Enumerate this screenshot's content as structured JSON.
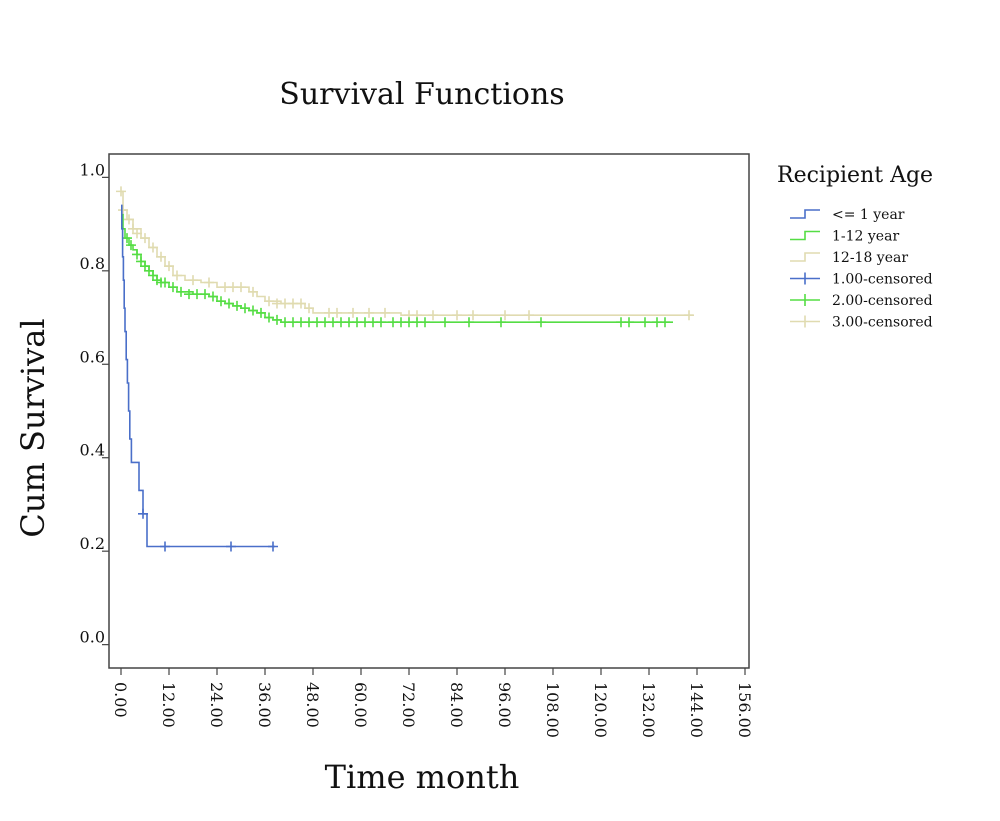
{
  "chart_data": {
    "type": "line",
    "subtype": "kaplan-meier step",
    "title": "Survival Functions",
    "xlabel": "Time month",
    "ylabel": "Cum Survival",
    "xlim": [
      -3,
      157
    ],
    "ylim": [
      -0.05,
      1.05
    ],
    "x_ticks": [
      "0.00",
      "12.00",
      "24.00",
      "36.00",
      "48.00",
      "60.00",
      "72.00",
      "84.00",
      "96.00",
      "108.00",
      "120.00",
      "132.00",
      "144.00",
      "156.00"
    ],
    "x_tick_values": [
      0,
      12,
      24,
      36,
      48,
      60,
      72,
      84,
      96,
      108,
      120,
      132,
      144,
      156
    ],
    "y_ticks": [
      "0.0",
      "0.2",
      "0.4",
      "0.6",
      "0.8",
      "1.0"
    ],
    "y_tick_values": [
      0,
      0.2,
      0.4,
      0.6,
      0.8,
      1.0
    ],
    "grid": false,
    "legend": {
      "title": "Recipient Age",
      "position": "right",
      "entries": [
        {
          "label": "<= 1 year",
          "kind": "step",
          "color": "#4a6fc9"
        },
        {
          "label": "1-12 year",
          "kind": "step",
          "color": "#55dd44"
        },
        {
          "label": "12-18 year",
          "kind": "step",
          "color": "#e0dbb0"
        },
        {
          "label": "1.00-censored",
          "kind": "censor",
          "color": "#4a6fc9"
        },
        {
          "label": "2.00-censored",
          "kind": "censor",
          "color": "#55dd44"
        },
        {
          "label": "3.00-censored",
          "kind": "censor",
          "color": "#e0dbb0"
        }
      ]
    },
    "series": [
      {
        "name": "<= 1 year",
        "color": "#4a6fc9",
        "steps": [
          [
            0,
            0.94
          ],
          [
            0.2,
            0.89
          ],
          [
            0.4,
            0.83
          ],
          [
            0.6,
            0.78
          ],
          [
            0.8,
            0.72
          ],
          [
            1.0,
            0.67
          ],
          [
            1.3,
            0.61
          ],
          [
            1.6,
            0.56
          ],
          [
            1.9,
            0.5
          ],
          [
            2.2,
            0.44
          ],
          [
            2.6,
            0.39
          ],
          [
            4.5,
            0.33
          ],
          [
            5.5,
            0.28
          ],
          [
            6.5,
            0.21
          ],
          [
            38.5,
            0.21
          ]
        ],
        "censored": [
          [
            5.5,
            0.28
          ],
          [
            11,
            0.21
          ],
          [
            27.5,
            0.21
          ],
          [
            38,
            0.21
          ]
        ]
      },
      {
        "name": "1-12 year",
        "color": "#55dd44",
        "steps": [
          [
            0,
            0.92
          ],
          [
            0.5,
            0.89
          ],
          [
            1,
            0.87
          ],
          [
            2,
            0.855
          ],
          [
            3,
            0.845
          ],
          [
            4,
            0.835
          ],
          [
            5,
            0.82
          ],
          [
            6,
            0.81
          ],
          [
            7,
            0.8
          ],
          [
            8,
            0.79
          ],
          [
            9,
            0.78
          ],
          [
            10,
            0.775
          ],
          [
            12,
            0.765
          ],
          [
            14,
            0.755
          ],
          [
            18,
            0.75
          ],
          [
            22,
            0.745
          ],
          [
            24,
            0.735
          ],
          [
            26,
            0.73
          ],
          [
            28,
            0.725
          ],
          [
            30,
            0.72
          ],
          [
            32,
            0.715
          ],
          [
            34,
            0.71
          ],
          [
            36,
            0.7
          ],
          [
            38,
            0.695
          ],
          [
            40,
            0.69
          ],
          [
            138,
            0.69
          ]
        ],
        "censored": [
          [
            1.5,
            0.87
          ],
          [
            2.5,
            0.855
          ],
          [
            4,
            0.835
          ],
          [
            5,
            0.82
          ],
          [
            6,
            0.81
          ],
          [
            7,
            0.8
          ],
          [
            8,
            0.79
          ],
          [
            9,
            0.78
          ],
          [
            10,
            0.775
          ],
          [
            11,
            0.775
          ],
          [
            13,
            0.765
          ],
          [
            15,
            0.755
          ],
          [
            17,
            0.75
          ],
          [
            19,
            0.75
          ],
          [
            21,
            0.75
          ],
          [
            23,
            0.745
          ],
          [
            25,
            0.735
          ],
          [
            27,
            0.73
          ],
          [
            29,
            0.725
          ],
          [
            31,
            0.72
          ],
          [
            33,
            0.715
          ],
          [
            35,
            0.71
          ],
          [
            37,
            0.7
          ],
          [
            39,
            0.695
          ],
          [
            41,
            0.69
          ],
          [
            43,
            0.69
          ],
          [
            45,
            0.69
          ],
          [
            47,
            0.69
          ],
          [
            49,
            0.69
          ],
          [
            51,
            0.69
          ],
          [
            53,
            0.69
          ],
          [
            55,
            0.69
          ],
          [
            57,
            0.69
          ],
          [
            59,
            0.69
          ],
          [
            61,
            0.69
          ],
          [
            63,
            0.69
          ],
          [
            65,
            0.69
          ],
          [
            68,
            0.69
          ],
          [
            70,
            0.69
          ],
          [
            72,
            0.69
          ],
          [
            74,
            0.69
          ],
          [
            76,
            0.69
          ],
          [
            81,
            0.69
          ],
          [
            87,
            0.69
          ],
          [
            95,
            0.69
          ],
          [
            105,
            0.69
          ],
          [
            125,
            0.69
          ],
          [
            127,
            0.69
          ],
          [
            131,
            0.69
          ],
          [
            134,
            0.69
          ],
          [
            136,
            0.69
          ]
        ]
      },
      {
        "name": "12-18 year",
        "color": "#e0dbb0",
        "steps": [
          [
            0,
            0.97
          ],
          [
            0.5,
            0.93
          ],
          [
            1.5,
            0.91
          ],
          [
            3,
            0.89
          ],
          [
            5,
            0.87
          ],
          [
            7,
            0.85
          ],
          [
            9,
            0.83
          ],
          [
            11,
            0.81
          ],
          [
            13,
            0.79
          ],
          [
            16,
            0.78
          ],
          [
            20,
            0.775
          ],
          [
            24,
            0.765
          ],
          [
            32,
            0.755
          ],
          [
            34,
            0.745
          ],
          [
            36,
            0.735
          ],
          [
            40,
            0.73
          ],
          [
            46,
            0.72
          ],
          [
            48,
            0.71
          ],
          [
            70,
            0.705
          ],
          [
            143,
            0.705
          ]
        ],
        "censored": [
          [
            0,
            0.97
          ],
          [
            0.5,
            0.93
          ],
          [
            2,
            0.91
          ],
          [
            3,
            0.89
          ],
          [
            4,
            0.88
          ],
          [
            6,
            0.87
          ],
          [
            8,
            0.85
          ],
          [
            10,
            0.83
          ],
          [
            12,
            0.81
          ],
          [
            14,
            0.79
          ],
          [
            18,
            0.78
          ],
          [
            22,
            0.775
          ],
          [
            26,
            0.765
          ],
          [
            28,
            0.765
          ],
          [
            30,
            0.765
          ],
          [
            33,
            0.755
          ],
          [
            37,
            0.735
          ],
          [
            39,
            0.73
          ],
          [
            41,
            0.73
          ],
          [
            43,
            0.73
          ],
          [
            45,
            0.73
          ],
          [
            47,
            0.72
          ],
          [
            52,
            0.71
          ],
          [
            54,
            0.71
          ],
          [
            58,
            0.71
          ],
          [
            62,
            0.71
          ],
          [
            66,
            0.71
          ],
          [
            72,
            0.705
          ],
          [
            74,
            0.705
          ],
          [
            78,
            0.705
          ],
          [
            84,
            0.705
          ],
          [
            88,
            0.705
          ],
          [
            96,
            0.705
          ],
          [
            102,
            0.705
          ],
          [
            142,
            0.705
          ]
        ]
      }
    ]
  }
}
